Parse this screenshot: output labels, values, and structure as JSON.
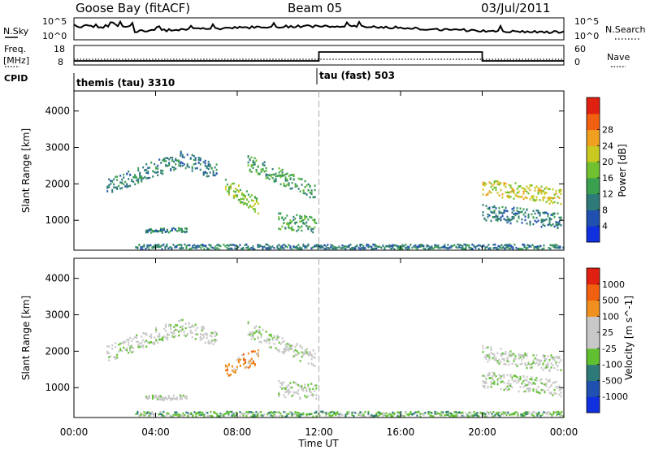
{
  "header": {
    "site": "Goose Bay (fitACF)",
    "beam": "Beam 05",
    "date": "03/Jul/2011"
  },
  "noise_panel": {
    "left_label": "N.Sky",
    "right_label": "N.Search",
    "left_ticks": [
      "10^5",
      "10^0"
    ],
    "right_ticks": [
      "10^5",
      "10^0"
    ]
  },
  "freq_panel": {
    "left_label_line1": "Freq.",
    "left_label_line2": "[MHz]",
    "right_label": "Nave",
    "left_ticks": [
      "18",
      "8"
    ],
    "right_ticks": [
      "60",
      "0"
    ]
  },
  "cpid": {
    "label": "CPID",
    "modes": [
      {
        "name": "themis (tau) 3310",
        "start_hour": 0
      },
      {
        "name": "tau (fast) 503",
        "start_hour": 12
      }
    ]
  },
  "x_axis": {
    "label": "Time UT",
    "ticks": [
      "00:00",
      "04:00",
      "08:00",
      "12:00",
      "16:00",
      "20:00",
      "00:00"
    ],
    "range_hours": [
      0,
      24
    ]
  },
  "chart_data": [
    {
      "type": "heatmap",
      "name": "power",
      "ylabel": "Slant Range [km]",
      "yticks": [
        1000,
        2000,
        3000,
        4000
      ],
      "ylim": [
        180,
        4550
      ],
      "colorbar": {
        "label": "Power [dB]",
        "ticks": [
          "4",
          "8",
          "12",
          "16",
          "20",
          "24",
          "28"
        ],
        "colors": [
          "#1030e0",
          "#2050b0",
          "#2e7a78",
          "#3aa050",
          "#70c030",
          "#c8c820",
          "#f0a020",
          "#f06010",
          "#e02010"
        ]
      },
      "regions": [
        {
          "start": 1.6,
          "end": 5.2,
          "range_start": 1950,
          "range_end": 2700,
          "level": 2
        },
        {
          "start": 5.2,
          "end": 7.0,
          "range_start": 2700,
          "range_end": 2350,
          "level": 2
        },
        {
          "start": 7.4,
          "end": 9.0,
          "range_start": 2000,
          "range_end": 1400,
          "level": 4
        },
        {
          "start": 8.5,
          "end": 11.8,
          "range_start": 2600,
          "range_end": 1800,
          "level": 3
        },
        {
          "start": 10.0,
          "end": 11.9,
          "range_start": 1000,
          "range_end": 900,
          "level": 3
        },
        {
          "start": 3.5,
          "end": 5.5,
          "range_start": 750,
          "range_end": 750,
          "level": 2
        },
        {
          "start": 20.0,
          "end": 23.9,
          "range_start": 1950,
          "range_end": 1650,
          "level": 5
        },
        {
          "start": 20.0,
          "end": 23.9,
          "range_start": 1250,
          "range_end": 1000,
          "level": 2
        },
        {
          "start": 3.0,
          "end": 24.0,
          "range_start": 300,
          "range_end": 300,
          "level": 2
        }
      ]
    },
    {
      "type": "heatmap",
      "name": "velocity",
      "ylabel": "Slant Range [km]",
      "yticks": [
        1000,
        2000,
        3000,
        4000
      ],
      "ylim": [
        180,
        4550
      ],
      "colorbar": {
        "label": "Velocity [m s^-1]",
        "ticks": [
          "1000",
          "500",
          "100",
          "25",
          "-25",
          "-100",
          "-500",
          "-1000"
        ],
        "colors": [
          "#1030e0",
          "#2050b0",
          "#2e7a78",
          "#60c030",
          "#c8c8c8",
          "#c8c8c8",
          "#f09020",
          "#f06010",
          "#e02010"
        ]
      },
      "regions": [
        {
          "start": 1.6,
          "end": 5.2,
          "range_start": 1950,
          "range_end": 2700,
          "level": 4
        },
        {
          "start": 5.2,
          "end": 7.0,
          "range_start": 2700,
          "range_end": 2350,
          "level": 4
        },
        {
          "start": 7.4,
          "end": 9.0,
          "range_start": 1500,
          "range_end": 1900,
          "level": 6
        },
        {
          "start": 8.5,
          "end": 11.8,
          "range_start": 2600,
          "range_end": 1800,
          "level": 4
        },
        {
          "start": 10.0,
          "end": 11.9,
          "range_start": 1000,
          "range_end": 900,
          "level": 4
        },
        {
          "start": 3.5,
          "end": 5.5,
          "range_start": 750,
          "range_end": 750,
          "level": 4
        },
        {
          "start": 20.0,
          "end": 23.9,
          "range_start": 1950,
          "range_end": 1650,
          "level": 4
        },
        {
          "start": 20.0,
          "end": 23.9,
          "range_start": 1250,
          "range_end": 1000,
          "level": 4
        },
        {
          "start": 3.0,
          "end": 24.0,
          "range_start": 300,
          "range_end": 300,
          "level": 3
        }
      ]
    }
  ]
}
